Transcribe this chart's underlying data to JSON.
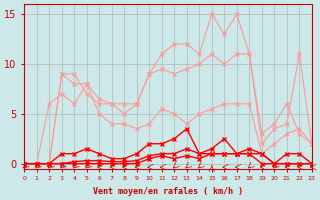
{
  "x": [
    0,
    1,
    2,
    3,
    4,
    5,
    6,
    7,
    8,
    9,
    10,
    11,
    12,
    13,
    14,
    15,
    16,
    17,
    18,
    19,
    20,
    21,
    22,
    23
  ],
  "line1": [
    0,
    0,
    0,
    9,
    9,
    7,
    6,
    6,
    6,
    6,
    9,
    11,
    12,
    12,
    11,
    15,
    13,
    15,
    11,
    3,
    4,
    6,
    3,
    2
  ],
  "line2": [
    0,
    0,
    0,
    9,
    8,
    8,
    6.5,
    6,
    5,
    6,
    9,
    9.5,
    9,
    9.5,
    10,
    11,
    10,
    11,
    11,
    2,
    3.5,
    4,
    11,
    2
  ],
  "line3": [
    0,
    0,
    6,
    7,
    6,
    8,
    5,
    4,
    4,
    3.5,
    4,
    5.5,
    5,
    4,
    5,
    5.5,
    6,
    6,
    6,
    1,
    2,
    3,
    3.5,
    2
  ],
  "line4": [
    0,
    0,
    0,
    1,
    1,
    1.5,
    1,
    0.5,
    0.5,
    1,
    2,
    2,
    2.5,
    3.5,
    1,
    1.5,
    2.5,
    1,
    1.5,
    1,
    0,
    1,
    1,
    0
  ],
  "line5": [
    0,
    0,
    0,
    0,
    0.2,
    0.3,
    0.3,
    0.2,
    0.2,
    0.3,
    0.8,
    1,
    1,
    1.5,
    1,
    1,
    1,
    1,
    1,
    1,
    0,
    0,
    0,
    0
  ],
  "line6": [
    0,
    0,
    0,
    0,
    0,
    0,
    0,
    0,
    0,
    0,
    0.5,
    0.8,
    0.5,
    0.8,
    0.5,
    1,
    1,
    1,
    1,
    0,
    0,
    0,
    0,
    0
  ],
  "bg_color": "#cce8e8",
  "grid_color": "#aaaaaa",
  "line1_color": "#ff9999",
  "line2_color": "#ff9999",
  "line3_color": "#ff9999",
  "line4_color": "#ff0000",
  "line5_color": "#ff0000",
  "line6_color": "#ff0000",
  "xlabel": "Vent moyen/en rafales ( km/h )",
  "xlim": [
    0,
    23
  ],
  "ylim": [
    -0.5,
    16
  ],
  "yticks": [
    0,
    5,
    10,
    15
  ],
  "title_color": "#cc0000",
  "axis_color": "#cc0000",
  "tick_color": "#cc0000"
}
